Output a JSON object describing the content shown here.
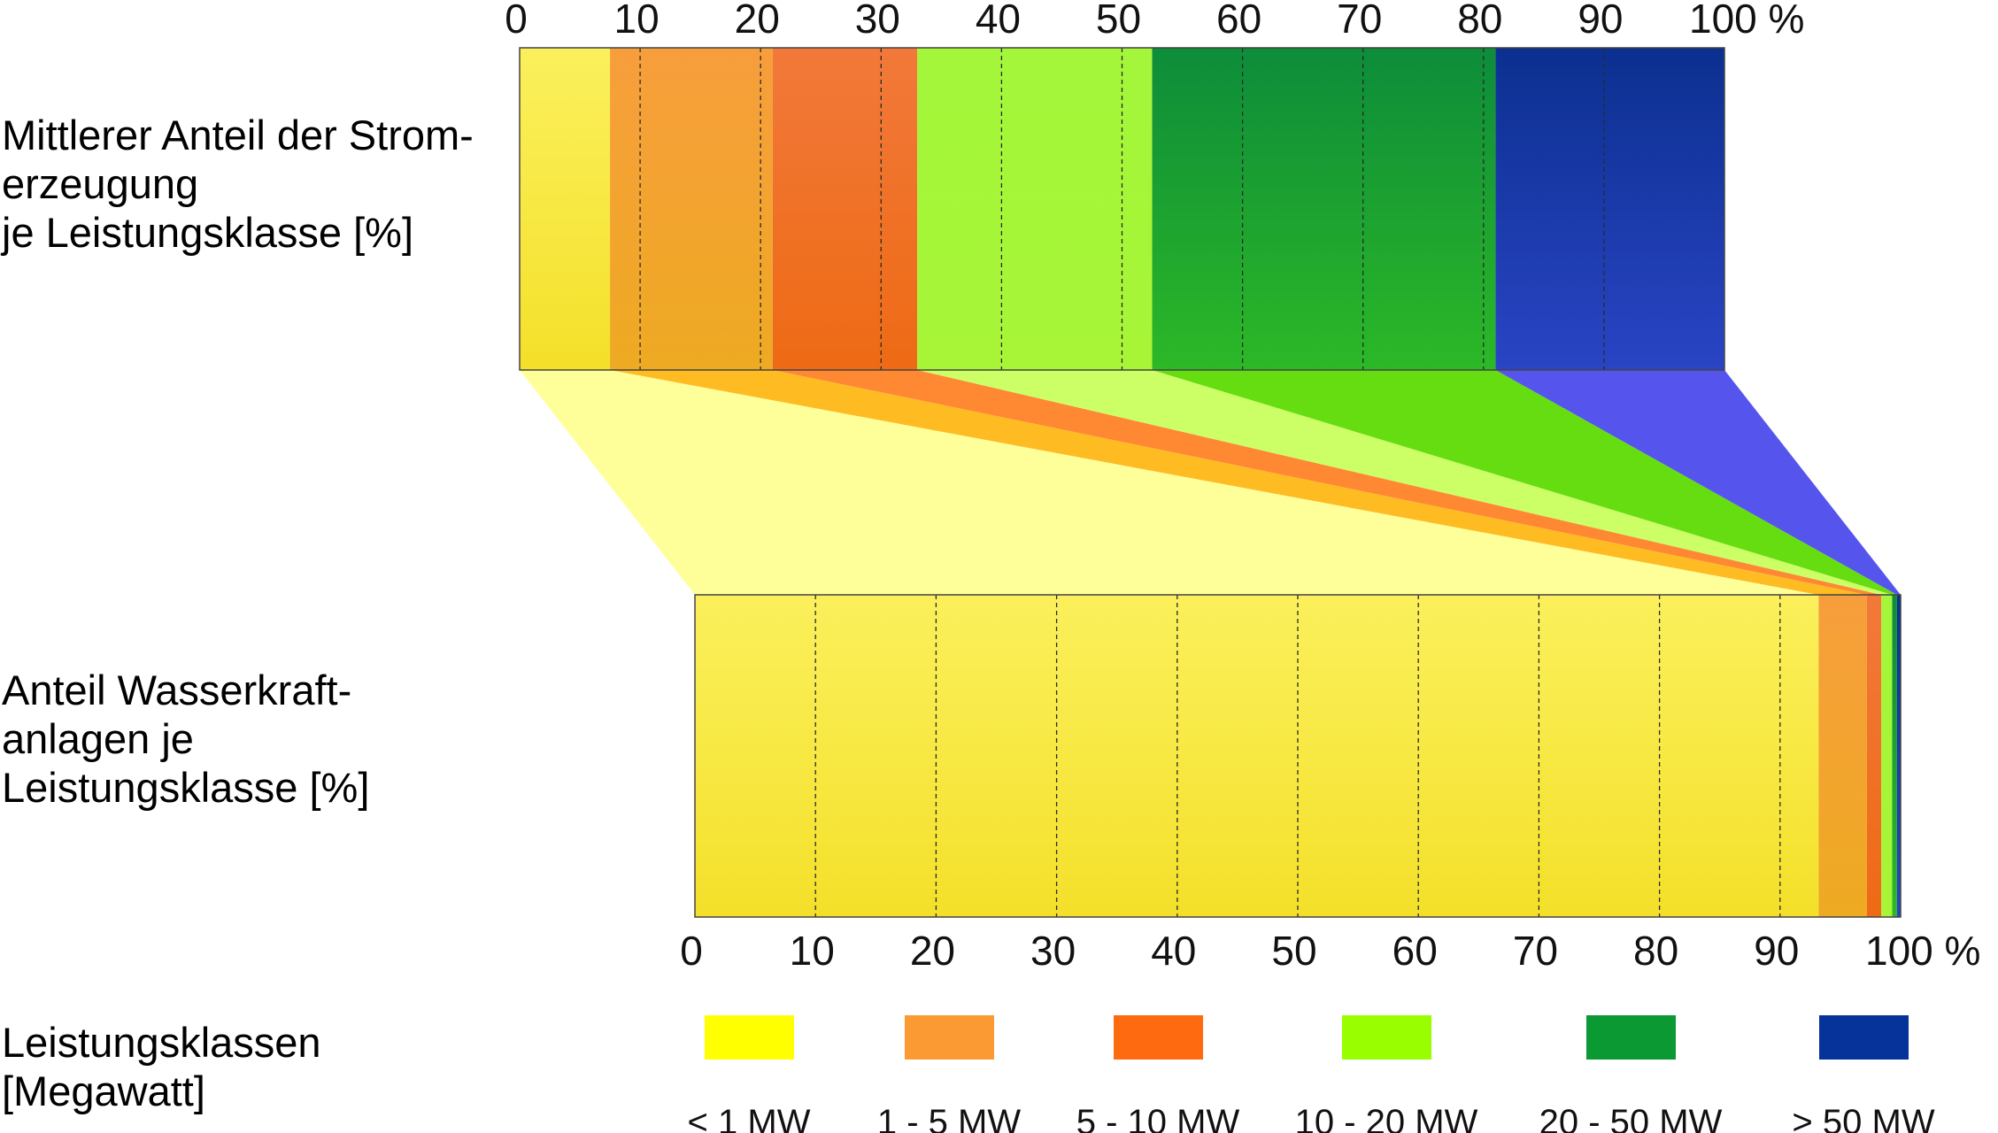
{
  "chart_data": {
    "type": "bar",
    "orientation": "horizontal-stacked-100",
    "axis": {
      "ticks": [
        "0",
        "10",
        "20",
        "30",
        "40",
        "50",
        "60",
        "70",
        "80",
        "90",
        "100 %"
      ],
      "range": [
        0,
        100
      ],
      "grid": "dashed vertical at every 10"
    },
    "rows": [
      {
        "id": "generation",
        "label": "Mittlerer Anteil der Strom-\nerzeugung\nje Leistungsklasse [%]",
        "values": [
          7.5,
          13.5,
          12,
          19.5,
          28.5,
          19
        ]
      },
      {
        "id": "plants",
        "label": "Anteil Wasserkraft-\nanlagen je\nLeistungsklasse [%]",
        "values": [
          93.2,
          4.0,
          1.2,
          0.9,
          0.4,
          0.3
        ]
      }
    ],
    "legend": {
      "title": "Leistungsklassen\n[Megawatt]",
      "placement": "bottom",
      "items": [
        {
          "label": "< 1 MW",
          "color": "#ffff00"
        },
        {
          "label": "1 - 5 MW",
          "color": "#fb9a33"
        },
        {
          "label": "5 - 10 MW",
          "color": "#fe6a10"
        },
        {
          "label": "10 - 20 MW",
          "color": "#99ff00"
        },
        {
          "label": "20 - 50 MW",
          "color": "#0a9933"
        },
        {
          "label": "> 50 MW",
          "color": "#063399"
        }
      ]
    },
    "gradients": [
      [
        "#fbf05c",
        "#f4e02a"
      ],
      [
        "#f79e3c",
        "#eeaa22"
      ],
      [
        "#f2793a",
        "#ee6a14"
      ],
      [
        "#a3f63a",
        "#a8f537"
      ],
      [
        "#0d8c3a",
        "#2cb827"
      ],
      [
        "#0b3090",
        "#2a44c4"
      ]
    ],
    "connector_colors": [
      "#ffff99",
      "#ffbb22",
      "#ff8833",
      "#ccff66",
      "#66dd11",
      "#5555ee"
    ]
  }
}
